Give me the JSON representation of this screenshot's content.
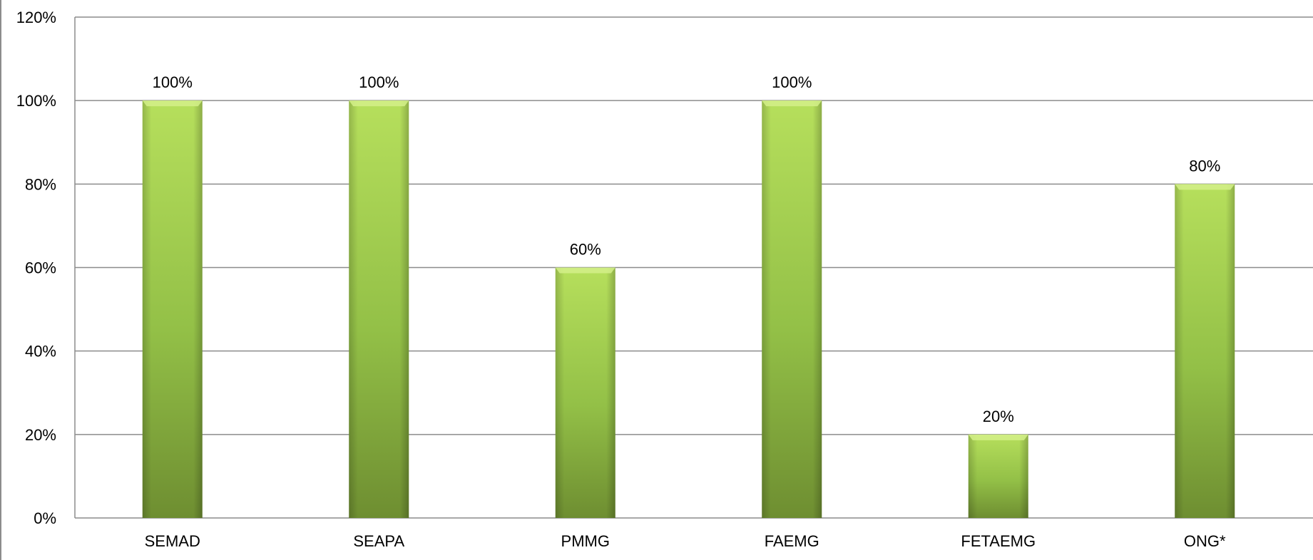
{
  "chart_data": {
    "type": "bar",
    "categories": [
      "SEMAD",
      "SEAPA",
      "PMMG",
      "FAEMG",
      "FETAEMG",
      "ONG*"
    ],
    "values": [
      100,
      100,
      60,
      100,
      20,
      80
    ],
    "value_labels": [
      "100%",
      "100%",
      "60%",
      "100%",
      "20%",
      "80%"
    ],
    "title": "",
    "xlabel": "",
    "ylabel": "",
    "ylim": [
      0,
      120
    ],
    "yticks": [
      0,
      20,
      40,
      60,
      80,
      100,
      120
    ],
    "ytick_labels": [
      "0%",
      "20%",
      "40%",
      "60%",
      "80%",
      "100%",
      "120%"
    ],
    "grid": true,
    "legend": "none",
    "colors": {
      "bar_light": "#b3dc5a",
      "bar_mid": "#93c047",
      "bar_dark": "#6f8f32",
      "grid": "#8c8c8c"
    }
  }
}
